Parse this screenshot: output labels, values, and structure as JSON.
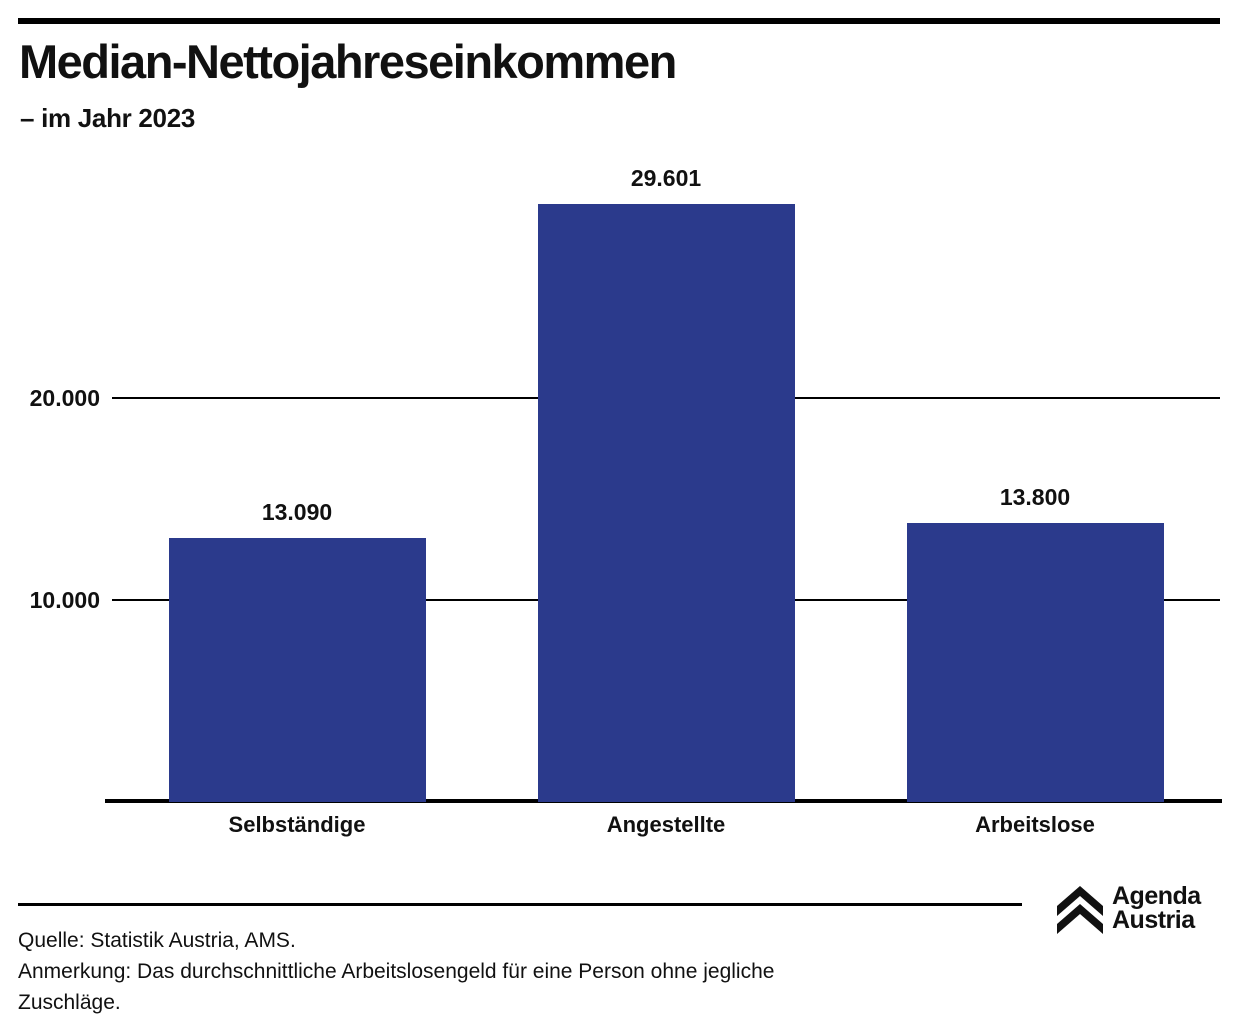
{
  "header": {
    "title": "Median-Nettojahreseinkommen",
    "subtitle": "– im Jahr 2023"
  },
  "chart_data": {
    "type": "bar",
    "title": "Median-Nettojahreseinkommen",
    "subtitle": "– im Jahr 2023",
    "categories": [
      "Selbständige",
      "Angestellte",
      "Arbeitslose"
    ],
    "values": [
      13090,
      29601,
      13800
    ],
    "value_labels": [
      "13.090",
      "29.601",
      "13.800"
    ],
    "xlabel": "",
    "ylabel": "",
    "ylim": [
      0,
      30000
    ],
    "yticks": [
      {
        "value": 20000,
        "label": "20.000"
      },
      {
        "value": 10000,
        "label": "10.000"
      }
    ],
    "grid": "horizontal",
    "legend": "none",
    "bar_color": "#2b3a8c"
  },
  "footer": {
    "lines": [
      "Quelle: Statistik Austria, AMS.",
      "Anmerkung: Das durchschnittliche Arbeitslosengeld für eine Person ohne jegliche",
      "Zuschläge."
    ],
    "logo": {
      "line1": "Agenda",
      "line2": "Austria",
      "icon": "double-chevron-up-icon"
    }
  },
  "colors": {
    "bar": "#2b3a8c",
    "text": "#111111",
    "rule": "#000000"
  }
}
